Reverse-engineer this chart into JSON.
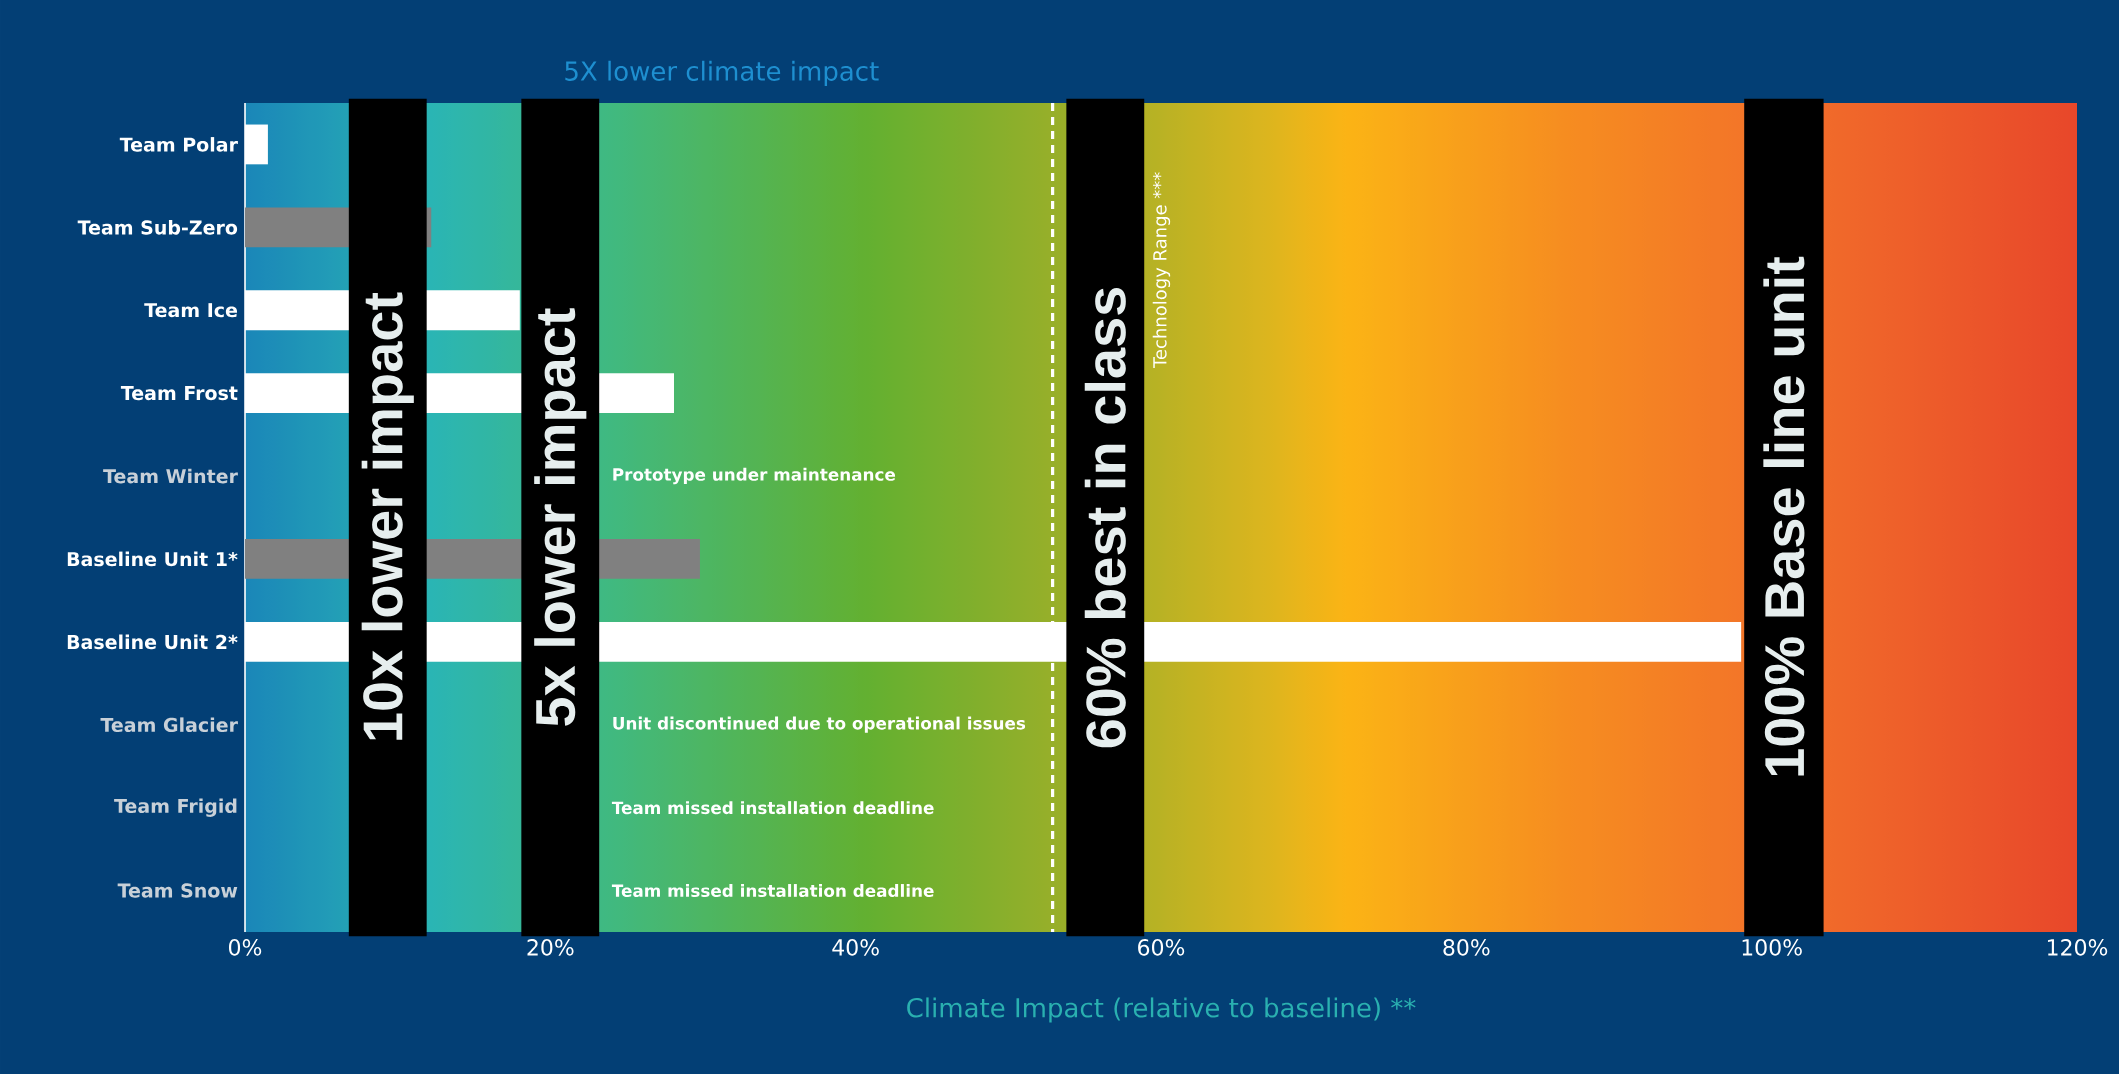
{
  "chart_data": {
    "type": "bar",
    "orientation": "horizontal",
    "title": "5X lower climate impact",
    "xlabel": "Climate Impact (relative to baseline) **",
    "categories": [
      "Team Polar",
      "Team Sub-Zero",
      "Team Ice",
      "Team Frost",
      "Team Winter",
      "Baseline Unit 1*",
      "Baseline Unit 2*",
      "Team Glacier",
      "Team Frigid",
      "Team Snow"
    ],
    "values": [
      1.5,
      12.2,
      18,
      28.1,
      null,
      29.8,
      98,
      null,
      null,
      null
    ],
    "colors": [
      "#ffffff",
      "#808080",
      "#ffffff",
      "#ffffff",
      "#ffffff",
      "#808080",
      "#ffffff",
      "#ffffff",
      "#ffffff",
      "#ffffff"
    ],
    "xlim": [
      0,
      120
    ],
    "xticks": [
      {
        "value": 0,
        "label": "0%"
      },
      {
        "value": 20,
        "label": "20%"
      },
      {
        "value": 40,
        "label": "40%"
      },
      {
        "value": 60,
        "label": "60%"
      },
      {
        "value": 80,
        "label": "80%"
      },
      {
        "value": 100,
        "label": "100%"
      },
      {
        "value": 120,
        "label": "120%"
      }
    ],
    "bands": [
      {
        "axis": "x",
        "from": 6.8,
        "to": 11.9,
        "label": "10x lower impact",
        "color": "#000000"
      },
      {
        "axis": "x",
        "from": 18.1,
        "to": 23.2,
        "label": "5x lower impact",
        "color": "#000000"
      },
      {
        "axis": "x",
        "from": 53.8,
        "to": 58.9,
        "label": "60% best in class",
        "color": "#000000"
      },
      {
        "axis": "x",
        "from": 98.2,
        "to": 103.4,
        "label": "100% Base line unit",
        "color": "#000000"
      }
    ],
    "ref_lines": [
      {
        "axis": "x",
        "value": 52.9,
        "label": "Technology Range ***",
        "color": "#ffffff",
        "line_style": "dashed"
      }
    ],
    "annotations": [
      "Prototype under maintenance",
      "Unit discontinued due to operational issues",
      "Team missed installation deadline",
      "Team missed installation deadline"
    ]
  }
}
